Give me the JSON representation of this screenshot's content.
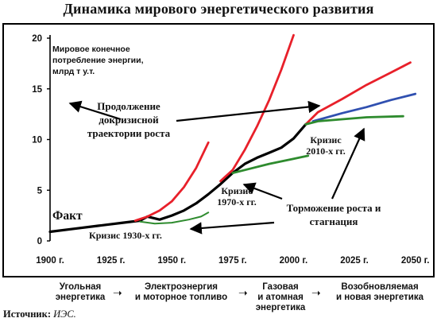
{
  "title": "Динамика мирового энергетического развития",
  "source": {
    "label": "Источник:",
    "value": "ИЭС."
  },
  "eras": [
    {
      "lines": [
        "Угольная",
        "энергетика"
      ]
    },
    {
      "lines": [
        "Электроэнергия",
        "и моторное топливо"
      ]
    },
    {
      "lines": [
        "Газовая",
        "и атомная",
        "энергетика"
      ]
    },
    {
      "lines": [
        "Возобновляемая",
        "и новая энергетика"
      ]
    }
  ],
  "colors": {
    "fact": "#000000",
    "red": "#e8202a",
    "green": "#2e8b2e",
    "blue": "#3050b0"
  },
  "chart_data": {
    "type": "line",
    "title": "Динамика мирового энергетического развития",
    "ylabel": "Мировое конечное потребление энергии, млрд т у.т.",
    "ylabel_lines": [
      "Мировое конечное",
      "потребление энергии,",
      "млрд т у.т."
    ],
    "xlim": [
      1900,
      2055
    ],
    "ylim": [
      0,
      20
    ],
    "x_ticks": [
      1900,
      1925,
      1950,
      1975,
      2000,
      2025,
      2050
    ],
    "x_tick_labels": [
      "1900 г.",
      "1925 г.",
      "1950 г.",
      "1975 г.",
      "2000 г.",
      "2025 г.",
      "2050 г."
    ],
    "y_ticks": [
      0,
      5,
      10,
      15,
      20
    ],
    "grid": false,
    "series": [
      {
        "name": "Факт",
        "color": "#000000",
        "width": 3.2,
        "points": [
          [
            1900,
            0.9
          ],
          [
            1910,
            1.2
          ],
          [
            1920,
            1.5
          ],
          [
            1930,
            1.8
          ],
          [
            1937,
            2.0
          ],
          [
            1940,
            2.4
          ],
          [
            1945,
            2.1
          ],
          [
            1950,
            2.5
          ],
          [
            1955,
            3.0
          ],
          [
            1960,
            3.7
          ],
          [
            1965,
            4.6
          ],
          [
            1970,
            5.6
          ],
          [
            1975,
            6.7
          ],
          [
            1980,
            7.6
          ],
          [
            1985,
            8.2
          ],
          [
            1990,
            8.7
          ],
          [
            1995,
            9.2
          ],
          [
            2000,
            10.1
          ],
          [
            2005,
            11.5
          ]
        ]
      },
      {
        "color": "#e8202a",
        "width": 2.8,
        "points": [
          [
            1935,
            2.0
          ],
          [
            1940,
            2.4
          ],
          [
            1945,
            3.0
          ],
          [
            1950,
            3.9
          ],
          [
            1955,
            5.3
          ],
          [
            1960,
            7.2
          ],
          [
            1965,
            9.7
          ]
        ]
      },
      {
        "color": "#e8202a",
        "width": 2.8,
        "points": [
          [
            1970,
            5.9
          ],
          [
            1975,
            7.0
          ],
          [
            1980,
            9.0
          ],
          [
            1985,
            11.3
          ],
          [
            1990,
            13.9
          ],
          [
            1995,
            16.9
          ],
          [
            2000,
            20.3
          ]
        ]
      },
      {
        "color": "#e8202a",
        "width": 2.8,
        "points": [
          [
            2005,
            11.5
          ],
          [
            2010,
            12.7
          ],
          [
            2020,
            14.0
          ],
          [
            2030,
            15.4
          ],
          [
            2040,
            16.6
          ],
          [
            2048,
            17.6
          ]
        ]
      },
      {
        "color": "#2e8b2e",
        "width": 2.0,
        "points": [
          [
            1937,
            1.9
          ],
          [
            1943,
            1.7
          ],
          [
            1950,
            1.8
          ],
          [
            1957,
            2.1
          ],
          [
            1962,
            2.4
          ],
          [
            1965,
            2.8
          ]
        ]
      },
      {
        "color": "#2e8b2e",
        "width": 2.8,
        "points": [
          [
            1975,
            6.7
          ],
          [
            1980,
            7.0
          ],
          [
            1990,
            7.6
          ],
          [
            2000,
            8.1
          ],
          [
            2006,
            8.4
          ]
        ]
      },
      {
        "color": "#3050b0",
        "width": 2.8,
        "points": [
          [
            2008,
            11.8
          ],
          [
            2020,
            12.6
          ],
          [
            2030,
            13.2
          ],
          [
            2040,
            13.9
          ],
          [
            2050,
            14.5
          ]
        ]
      },
      {
        "color": "#2e8b2e",
        "width": 2.8,
        "points": [
          [
            2005,
            11.5
          ],
          [
            2010,
            11.8
          ],
          [
            2020,
            12.0
          ],
          [
            2030,
            12.2
          ],
          [
            2045,
            12.3
          ]
        ]
      }
    ],
    "annotations": [
      {
        "id": "fakt",
        "text": [
          "Факт"
        ]
      },
      {
        "id": "continuation",
        "text": [
          "Продолжение",
          "докризисной",
          "траектории роста"
        ]
      },
      {
        "id": "crisis-1970",
        "text": [
          "Кризис",
          "1970-х гг."
        ]
      },
      {
        "id": "crisis-2010",
        "text": [
          "Кризис",
          "2010-х гг."
        ]
      },
      {
        "id": "slowdown",
        "text": [
          "Торможение роста и",
          "стагнация"
        ]
      },
      {
        "id": "crisis-1930",
        "text": [
          "Кризис 1930-х гг."
        ]
      }
    ]
  }
}
